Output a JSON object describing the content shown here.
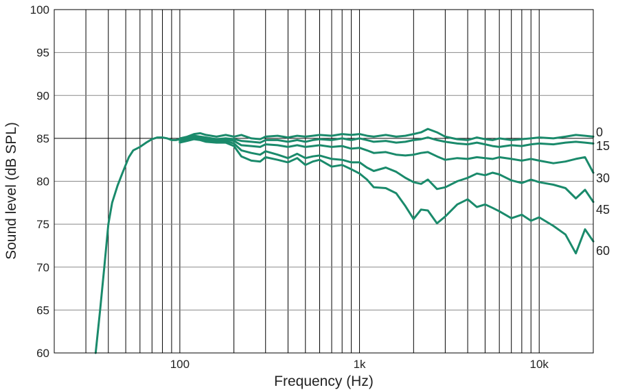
{
  "chart_data": {
    "type": "line",
    "title": "",
    "xlabel": "Frequency (Hz)",
    "ylabel": "Sound level (dB SPL)",
    "x_scale": "log",
    "xlim": [
      20,
      20000
    ],
    "ylim": [
      60,
      100
    ],
    "grid": true,
    "line_color": "#1a8a6b",
    "x_ticks": [
      {
        "value": 100,
        "label": "100"
      },
      {
        "value": 1000,
        "label": "1k"
      },
      {
        "value": 10000,
        "label": "10k"
      }
    ],
    "y_ticks": [
      {
        "value": 60,
        "label": "60"
      },
      {
        "value": 65,
        "label": "65"
      },
      {
        "value": 70,
        "label": "70"
      },
      {
        "value": 75,
        "label": "75"
      },
      {
        "value": 80,
        "label": "80"
      },
      {
        "value": 85,
        "label": "85"
      },
      {
        "value": 90,
        "label": "90"
      },
      {
        "value": 95,
        "label": "95"
      },
      {
        "value": 100,
        "label": "100"
      }
    ],
    "low_end": {
      "x": [
        34,
        36,
        38,
        40,
        42,
        45,
        48,
        52,
        55,
        60,
        65,
        70,
        75,
        80,
        85,
        90,
        95,
        100
      ],
      "y": [
        60,
        65,
        70,
        75,
        77.5,
        79.5,
        81,
        82.8,
        83.6,
        84,
        84.5,
        84.9,
        85.1,
        85.1,
        85,
        84.8,
        84.8,
        84.9
      ]
    },
    "series": [
      {
        "name": "0",
        "x": [
          100,
          110,
          120,
          130,
          140,
          160,
          180,
          200,
          220,
          250,
          280,
          300,
          350,
          400,
          450,
          500,
          550,
          600,
          700,
          800,
          900,
          1000,
          1100,
          1200,
          1400,
          1600,
          1800,
          2000,
          2200,
          2400,
          2700,
          3000,
          3500,
          4000,
          4500,
          5000,
          5500,
          6000,
          7000,
          8000,
          9000,
          10000,
          12000,
          14000,
          16000,
          18000,
          20000
        ],
        "y": [
          85,
          85.2,
          85.5,
          85.6,
          85.4,
          85.2,
          85.4,
          85.2,
          85.4,
          85,
          84.9,
          85.2,
          85.3,
          85.1,
          85.3,
          85.2,
          85.3,
          85.4,
          85.3,
          85.5,
          85.4,
          85.5,
          85.3,
          85.2,
          85.4,
          85.2,
          85.3,
          85.5,
          85.7,
          86.1,
          85.7,
          85.2,
          84.9,
          84.8,
          85.1,
          84.9,
          84.8,
          85,
          84.8,
          84.9,
          85,
          85.1,
          85,
          85.2,
          85.4,
          85.3,
          85.2
        ]
      },
      {
        "name": "15",
        "x": [
          100,
          110,
          120,
          130,
          140,
          160,
          180,
          200,
          220,
          250,
          280,
          300,
          350,
          400,
          450,
          500,
          550,
          600,
          700,
          800,
          900,
          1000,
          1100,
          1200,
          1400,
          1600,
          1800,
          2000,
          2200,
          2400,
          2700,
          3000,
          3500,
          4000,
          4500,
          5000,
          5500,
          6000,
          7000,
          8000,
          9000,
          10000,
          12000,
          14000,
          16000,
          18000,
          20000
        ],
        "y": [
          84.8,
          85,
          85.3,
          85.2,
          85.1,
          84.9,
          85,
          84.9,
          84.7,
          84.6,
          84.5,
          84.8,
          84.8,
          84.6,
          84.8,
          84.6,
          84.8,
          84.9,
          84.8,
          85,
          84.8,
          85,
          84.8,
          84.6,
          84.7,
          84.5,
          84.6,
          84.8,
          84.9,
          85.1,
          84.8,
          84.6,
          84.4,
          84.3,
          84.5,
          84.3,
          84.1,
          84,
          84.2,
          84.1,
          84.3,
          84.4,
          84.3,
          84.5,
          84.6,
          84.5,
          84.4
        ]
      },
      {
        "name": "30",
        "x": [
          100,
          110,
          120,
          130,
          140,
          160,
          180,
          200,
          220,
          250,
          280,
          300,
          350,
          400,
          450,
          500,
          550,
          600,
          700,
          800,
          900,
          1000,
          1100,
          1200,
          1400,
          1600,
          1800,
          2000,
          2200,
          2400,
          2700,
          3000,
          3500,
          4000,
          4500,
          5000,
          5500,
          6000,
          7000,
          8000,
          9000,
          10000,
          12000,
          14000,
          16000,
          18000,
          20000
        ],
        "y": [
          84.7,
          84.8,
          85.1,
          85,
          84.9,
          84.8,
          84.9,
          84.7,
          84.2,
          84.1,
          84,
          84.3,
          84.2,
          84,
          84.2,
          84,
          84.1,
          84.2,
          84,
          84.1,
          83.8,
          83.9,
          83.6,
          83.3,
          83.4,
          83.1,
          83,
          83.1,
          83.3,
          83.4,
          82.9,
          82.5,
          82.7,
          82.6,
          82.8,
          82.7,
          82.6,
          82.8,
          82.6,
          82.4,
          82.6,
          82.4,
          82.1,
          82.3,
          82.6,
          82.8,
          81
        ]
      },
      {
        "name": "45",
        "x": [
          100,
          110,
          120,
          130,
          140,
          160,
          180,
          200,
          220,
          250,
          280,
          300,
          350,
          400,
          450,
          500,
          550,
          600,
          700,
          800,
          900,
          1000,
          1100,
          1200,
          1400,
          1600,
          1800,
          2000,
          2200,
          2400,
          2700,
          3000,
          3500,
          4000,
          4500,
          5000,
          5500,
          6000,
          7000,
          8000,
          9000,
          10000,
          12000,
          14000,
          16000,
          18000,
          20000
        ],
        "y": [
          84.6,
          84.8,
          85,
          84.9,
          84.8,
          84.6,
          84.7,
          84.4,
          83.6,
          83.3,
          83.1,
          83.5,
          83.1,
          82.7,
          83.2,
          82.7,
          82.9,
          83,
          82.6,
          82.5,
          82.2,
          82.2,
          81.6,
          81.2,
          81.6,
          81.1,
          80.4,
          79.9,
          79.7,
          80.2,
          79.1,
          79.3,
          80,
          80.4,
          80.9,
          80.7,
          81,
          80.8,
          80.1,
          79.8,
          80.2,
          79.9,
          79.6,
          79.2,
          78,
          79,
          77.6
        ]
      },
      {
        "name": "60",
        "x": [
          100,
          110,
          120,
          130,
          140,
          160,
          180,
          200,
          220,
          250,
          280,
          300,
          350,
          400,
          450,
          500,
          550,
          600,
          700,
          800,
          900,
          1000,
          1100,
          1200,
          1400,
          1600,
          1800,
          2000,
          2200,
          2400,
          2700,
          3000,
          3500,
          4000,
          4500,
          5000,
          5500,
          6000,
          7000,
          8000,
          9000,
          10000,
          12000,
          14000,
          16000,
          18000,
          20000
        ],
        "y": [
          84.5,
          84.7,
          84.9,
          84.8,
          84.6,
          84.5,
          84.5,
          84.1,
          82.9,
          82.4,
          82.3,
          82.8,
          82.5,
          82.2,
          82.7,
          81.9,
          82.3,
          82.5,
          81.7,
          81.9,
          81.4,
          80.9,
          80.2,
          79.3,
          79.2,
          78.6,
          77.1,
          75.6,
          76.7,
          76.6,
          75.1,
          75.9,
          77.3,
          77.9,
          77,
          77.3,
          76.9,
          76.5,
          75.7,
          76.1,
          75.4,
          75.8,
          74.8,
          73.8,
          71.6,
          74.4,
          73
        ]
      }
    ]
  }
}
